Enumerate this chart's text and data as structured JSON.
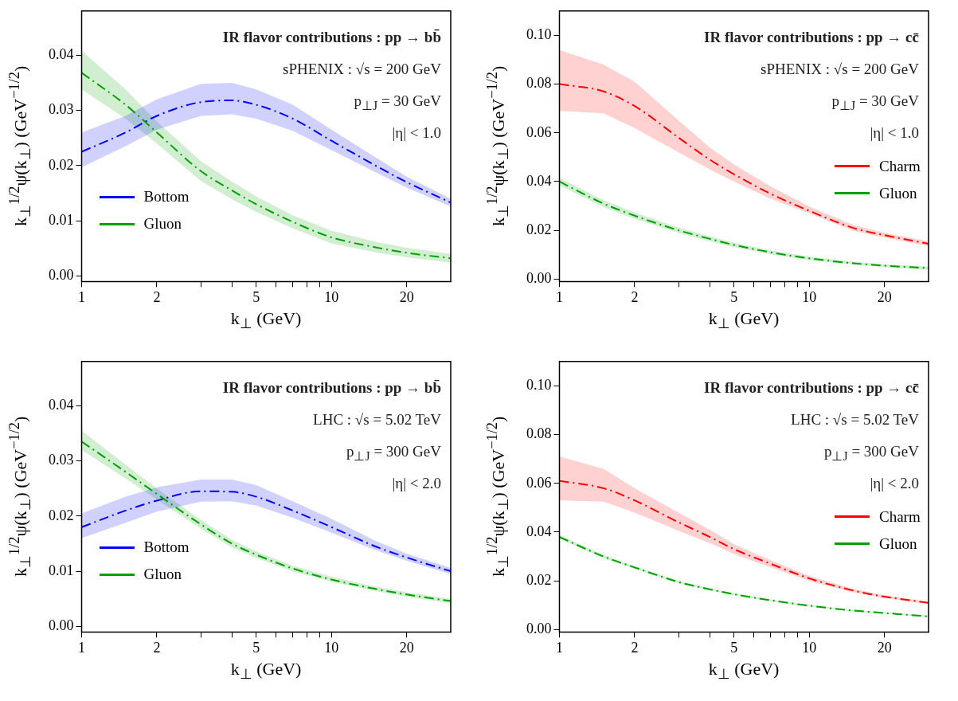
{
  "chart_data": [
    {
      "type": "line",
      "title": "IR flavor contributions :  pp → bb̄",
      "annotations": [
        "sPHENIX :  √s = 200 GeV",
        "p$_{⊥J}$ = 30 GeV",
        "|η| < 1.0"
      ],
      "xlabel": "k$_{⊥}$  (GeV)",
      "ylabel": "k$_{⊥}$$^{1/2}$ψ(k$_{⊥}$)  (GeV$^{−1/2}$)",
      "log": "x",
      "line_style": "dashed",
      "legend": "bottom left",
      "xlim": [
        1,
        30
      ],
      "xticks": [
        1,
        2,
        {
          "value": 3,
          "label": null
        },
        {
          "value": 4,
          "label": null
        },
        5,
        {
          "value": 6,
          "label": null
        },
        {
          "value": 7,
          "label": null
        },
        {
          "value": 8,
          "label": null
        },
        {
          "value": 9,
          "label": null
        },
        10,
        20
      ],
      "ylim": [
        -0.001,
        0.048
      ],
      "yticks": [
        {
          "value": 0,
          "label": "0.00"
        },
        {
          "value": 0.01,
          "label": "0.01"
        },
        {
          "value": 0.02,
          "label": "0.02"
        },
        {
          "value": 0.03,
          "label": "0.03"
        },
        {
          "value": 0.04,
          "label": "0.04"
        }
      ],
      "x": [
        1,
        1.5,
        2,
        3,
        4,
        5,
        7,
        10,
        15,
        20,
        30
      ],
      "series": [
        {
          "name": "Bottom",
          "color": "#0000ff",
          "values": [
            0.0225,
            0.026,
            0.029,
            0.0315,
            0.0318,
            0.031,
            0.0285,
            0.0245,
            0.02,
            0.017,
            0.0133
          ],
          "lower": [
            0.0197,
            0.0235,
            0.0265,
            0.029,
            0.0293,
            0.0285,
            0.0263,
            0.0228,
            0.0188,
            0.016,
            0.0126
          ],
          "upper": [
            0.026,
            0.029,
            0.032,
            0.0348,
            0.035,
            0.0338,
            0.031,
            0.0265,
            0.0215,
            0.018,
            0.014
          ]
        },
        {
          "name": "Gluon",
          "color": "#00a000",
          "values": [
            0.0368,
            0.031,
            0.026,
            0.019,
            0.0155,
            0.013,
            0.0098,
            0.007,
            0.0052,
            0.0042,
            0.0032
          ],
          "lower": [
            0.0338,
            0.0285,
            0.024,
            0.0172,
            0.0139,
            0.0116,
            0.0086,
            0.0059,
            0.0043,
            0.0034,
            0.0024
          ],
          "upper": [
            0.0408,
            0.0338,
            0.028,
            0.0208,
            0.0171,
            0.0144,
            0.011,
            0.0082,
            0.0062,
            0.0051,
            0.004
          ]
        }
      ]
    },
    {
      "type": "line",
      "title": "IR flavor contributions :  pp → cc̄",
      "annotations": [
        "sPHENIX :  √s = 200 GeV",
        "p$_{⊥J}$ = 30 GeV",
        "|η| < 1.0"
      ],
      "xlabel": "k$_{⊥}$  (GeV)",
      "ylabel": "k$_{⊥}$$^{1/2}$ψ(k$_{⊥}$)  (GeV$^{−1/2}$)",
      "log": "x",
      "line_style": "dashed",
      "legend": "right",
      "xlim": [
        1,
        30
      ],
      "xticks": [
        1,
        2,
        {
          "value": 3,
          "label": null
        },
        {
          "value": 4,
          "label": null
        },
        5,
        {
          "value": 6,
          "label": null
        },
        {
          "value": 7,
          "label": null
        },
        {
          "value": 8,
          "label": null
        },
        {
          "value": 9,
          "label": null
        },
        10,
        20
      ],
      "ylim": [
        -0.001,
        0.11
      ],
      "yticks": [
        {
          "value": 0,
          "label": "0.00"
        },
        {
          "value": 0.02,
          "label": "0.02"
        },
        {
          "value": 0.04,
          "label": "0.04"
        },
        {
          "value": 0.06,
          "label": "0.06"
        },
        {
          "value": 0.08,
          "label": "0.08"
        },
        {
          "value": 0.1,
          "label": "0.10"
        }
      ],
      "x": [
        1,
        1.5,
        2,
        3,
        4,
        5,
        7,
        10,
        15,
        20,
        30
      ],
      "series": [
        {
          "name": "Charm",
          "color": "#ff0000",
          "values": [
            0.08,
            0.077,
            0.071,
            0.058,
            0.049,
            0.043,
            0.035,
            0.028,
            0.021,
            0.018,
            0.0145
          ],
          "lower": [
            0.069,
            0.068,
            0.062,
            0.052,
            0.045,
            0.04,
            0.033,
            0.027,
            0.0198,
            0.017,
            0.0135
          ],
          "upper": [
            0.094,
            0.088,
            0.081,
            0.065,
            0.054,
            0.047,
            0.038,
            0.0298,
            0.0222,
            0.019,
            0.0155
          ]
        },
        {
          "name": "Gluon",
          "color": "#00a000",
          "values": [
            0.04,
            0.031,
            0.026,
            0.02,
            0.0165,
            0.014,
            0.011,
            0.0085,
            0.0065,
            0.0055,
            0.0045
          ],
          "lower": [
            0.0385,
            0.0296,
            0.0247,
            0.0189,
            0.0155,
            0.0131,
            0.0102,
            0.0078,
            0.0059,
            0.0049,
            0.0038
          ],
          "upper": [
            0.0415,
            0.0324,
            0.0273,
            0.0211,
            0.0175,
            0.0149,
            0.0118,
            0.0092,
            0.0071,
            0.0061,
            0.0052
          ]
        }
      ]
    },
    {
      "type": "line",
      "title": "IR flavor contributions :  pp → bb̄",
      "annotations": [
        "LHC :  √s = 5.02 TeV",
        "p$_{⊥J}$ = 300 GeV",
        "|η| < 2.0"
      ],
      "xlabel": "k$_{⊥}$  (GeV)",
      "ylabel": "k$_{⊥}$$^{1/2}$ψ(k$_{⊥}$)  (GeV$^{−1/2}$)",
      "log": "x",
      "line_style": "dashed",
      "legend": "bottom left",
      "xlim": [
        1,
        30
      ],
      "xticks": [
        1,
        2,
        {
          "value": 3,
          "label": null
        },
        {
          "value": 4,
          "label": null
        },
        5,
        {
          "value": 6,
          "label": null
        },
        {
          "value": 7,
          "label": null
        },
        {
          "value": 8,
          "label": null
        },
        {
          "value": 9,
          "label": null
        },
        10,
        20
      ],
      "ylim": [
        -0.001,
        0.048
      ],
      "yticks": [
        {
          "value": 0,
          "label": "0.00"
        },
        {
          "value": 0.01,
          "label": "0.01"
        },
        {
          "value": 0.02,
          "label": "0.02"
        },
        {
          "value": 0.03,
          "label": "0.03"
        },
        {
          "value": 0.04,
          "label": "0.04"
        }
      ],
      "x": [
        1,
        1.5,
        2,
        3,
        4,
        5,
        7,
        10,
        15,
        20,
        30
      ],
      "series": [
        {
          "name": "Bottom",
          "color": "#0000ff",
          "values": [
            0.018,
            0.021,
            0.0228,
            0.0245,
            0.0244,
            0.0235,
            0.021,
            0.018,
            0.0145,
            0.0125,
            0.01
          ],
          "lower": [
            0.016,
            0.0188,
            0.0208,
            0.0226,
            0.0227,
            0.0219,
            0.0197,
            0.017,
            0.0138,
            0.0119,
            0.0095
          ],
          "upper": [
            0.0205,
            0.0235,
            0.0252,
            0.0266,
            0.0266,
            0.0256,
            0.0227,
            0.0195,
            0.0155,
            0.0132,
            0.0106
          ]
        },
        {
          "name": "Gluon",
          "color": "#00a000",
          "values": [
            0.0335,
            0.028,
            0.024,
            0.0185,
            0.015,
            0.013,
            0.0105,
            0.0085,
            0.0068,
            0.0058,
            0.0046
          ],
          "lower": [
            0.032,
            0.0268,
            0.023,
            0.0177,
            0.0143,
            0.0124,
            0.01,
            0.0081,
            0.0064,
            0.0054,
            0.0042
          ],
          "upper": [
            0.0355,
            0.0293,
            0.025,
            0.0193,
            0.0157,
            0.0136,
            0.011,
            0.009,
            0.0072,
            0.0062,
            0.005
          ]
        }
      ]
    },
    {
      "type": "line",
      "title": "IR flavor contributions :  pp → cc̄",
      "annotations": [
        "LHC :  √s = 5.02 TeV",
        "p$_{⊥J}$ = 300 GeV",
        "|η| < 2.0"
      ],
      "xlabel": "k$_{⊥}$  (GeV)",
      "ylabel": "k$_{⊥}$$^{1/2}$ψ(k$_{⊥}$)  (GeV$^{−1/2}$)",
      "log": "x",
      "line_style": "dashed",
      "legend": "right",
      "xlim": [
        1,
        30
      ],
      "xticks": [
        1,
        2,
        {
          "value": 3,
          "label": null
        },
        {
          "value": 4,
          "label": null
        },
        5,
        {
          "value": 6,
          "label": null
        },
        {
          "value": 7,
          "label": null
        },
        {
          "value": 8,
          "label": null
        },
        {
          "value": 9,
          "label": null
        },
        10,
        20
      ],
      "ylim": [
        -0.001,
        0.11
      ],
      "yticks": [
        {
          "value": 0,
          "label": "0.00"
        },
        {
          "value": 0.02,
          "label": "0.02"
        },
        {
          "value": 0.04,
          "label": "0.04"
        },
        {
          "value": 0.06,
          "label": "0.06"
        },
        {
          "value": 0.08,
          "label": "0.08"
        },
        {
          "value": 0.1,
          "label": "0.10"
        }
      ],
      "x": [
        1,
        1.5,
        2,
        3,
        4,
        5,
        7,
        10,
        15,
        20,
        30
      ],
      "series": [
        {
          "name": "Charm",
          "color": "#ff0000",
          "values": [
            0.061,
            0.058,
            0.053,
            0.044,
            0.038,
            0.033,
            0.027,
            0.021,
            0.016,
            0.0135,
            0.011
          ],
          "lower": [
            0.053,
            0.0525,
            0.048,
            0.0405,
            0.0355,
            0.031,
            0.0255,
            0.02,
            0.0153,
            0.0129,
            0.0105
          ],
          "upper": [
            0.071,
            0.066,
            0.058,
            0.048,
            0.041,
            0.035,
            0.0285,
            0.022,
            0.0167,
            0.0141,
            0.0115
          ]
        },
        {
          "name": "Gluon",
          "color": "#00a000",
          "values": [
            0.038,
            0.03,
            0.0255,
            0.0195,
            0.0165,
            0.0145,
            0.012,
            0.0098,
            0.0078,
            0.0068,
            0.0054
          ],
          "lower": [
            0.0372,
            0.0293,
            0.0249,
            0.019,
            0.016,
            0.0141,
            0.0116,
            0.0095,
            0.0075,
            0.0065,
            0.0051
          ],
          "upper": [
            0.0388,
            0.0307,
            0.0261,
            0.02,
            0.017,
            0.0149,
            0.0124,
            0.0101,
            0.0081,
            0.0071,
            0.0057
          ]
        }
      ]
    }
  ]
}
